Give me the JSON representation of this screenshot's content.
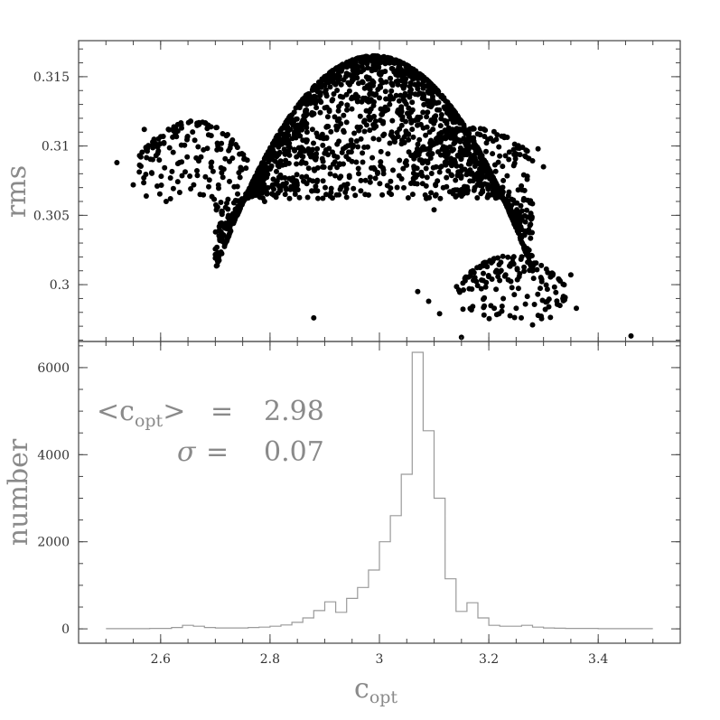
{
  "chart_data": [
    {
      "type": "scatter",
      "ylabel": "rms",
      "xlim": [
        2.45,
        3.55
      ],
      "ylim": [
        0.2959,
        0.3176
      ],
      "yticks": [
        0.3,
        0.305,
        0.31,
        0.315
      ],
      "ytick_labels": [
        "0.3",
        "0.305",
        "0.31",
        "0.315"
      ],
      "clusters": [
        {
          "x_center": 2.99,
          "x_halfwidth": 0.29,
          "y_peak": 0.3165,
          "sag": 0.0155,
          "y_min": 0.3062,
          "n": 1800
        },
        {
          "x_center": 2.66,
          "x_halfwidth": 0.1,
          "y_peak": 0.3118,
          "sag": 0.0025,
          "y_min": 0.306,
          "n": 160
        },
        {
          "x_center": 3.17,
          "x_halfwidth": 0.11,
          "y_peak": 0.3113,
          "sag": 0.002,
          "y_min": 0.3062,
          "n": 160
        },
        {
          "x_center": 3.24,
          "x_halfwidth": 0.1,
          "y_peak": 0.3021,
          "sag": 0.0022,
          "y_min": 0.2975,
          "n": 150
        }
      ],
      "points": [
        {
          "x": 2.88,
          "y": 0.2976
        },
        {
          "x": 3.46,
          "y": 0.2963
        },
        {
          "x": 3.15,
          "y": 0.2962
        },
        {
          "x": 3.28,
          "y": 0.2971
        },
        {
          "x": 2.52,
          "y": 0.3088
        },
        {
          "x": 2.55,
          "y": 0.3072
        },
        {
          "x": 2.59,
          "y": 0.3102
        },
        {
          "x": 2.57,
          "y": 0.3112
        },
        {
          "x": 2.61,
          "y": 0.306
        },
        {
          "x": 3.3,
          "y": 0.3085
        },
        {
          "x": 3.29,
          "y": 0.3098
        },
        {
          "x": 3.27,
          "y": 0.3076
        },
        {
          "x": 3.1,
          "y": 0.3054
        },
        {
          "x": 2.79,
          "y": 0.306
        },
        {
          "x": 2.94,
          "y": 0.3063
        },
        {
          "x": 3.07,
          "y": 0.2995
        },
        {
          "x": 3.09,
          "y": 0.2988
        },
        {
          "x": 3.11,
          "y": 0.2979
        },
        {
          "x": 3.33,
          "y": 0.2985
        },
        {
          "x": 3.36,
          "y": 0.2983
        },
        {
          "x": 3.35,
          "y": 0.3007
        },
        {
          "x": 3.21,
          "y": 0.2983
        },
        {
          "x": 3.25,
          "y": 0.2983
        }
      ]
    },
    {
      "type": "histogram",
      "xlabel": "c",
      "xlabel_sub": "opt",
      "ylabel": "number",
      "xlim": [
        2.45,
        3.55
      ],
      "ylim": [
        -330,
        6600
      ],
      "xticks": [
        2.6,
        2.8,
        3.0,
        3.2,
        3.4
      ],
      "xtick_labels": [
        "2.6",
        "2.8",
        "3",
        "3.2",
        "3.4"
      ],
      "yticks": [
        0,
        2000,
        4000,
        6000
      ],
      "ytick_labels": [
        "0",
        "2000",
        "4000",
        "6000"
      ],
      "bin_edges": [
        2.5,
        3.5
      ],
      "bin_width": 0.02,
      "counts": [
        5,
        5,
        5,
        5,
        10,
        10,
        30,
        80,
        60,
        30,
        20,
        20,
        20,
        30,
        40,
        60,
        90,
        150,
        250,
        420,
        620,
        380,
        700,
        950,
        1350,
        2000,
        2600,
        3550,
        6350,
        4550,
        3000,
        1150,
        400,
        600,
        250,
        80,
        60,
        60,
        80,
        40,
        20,
        15,
        10,
        10,
        10,
        5,
        5,
        5,
        5,
        5
      ],
      "annotations": [
        {
          "lhs": "<c",
          "sub": "opt",
          "rhs": ">",
          "eq": "=",
          "value": "2.98"
        },
        {
          "lhs": "σ",
          "eq": "=",
          "value": "0.07"
        }
      ]
    }
  ]
}
